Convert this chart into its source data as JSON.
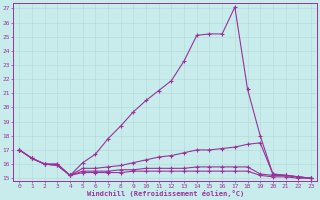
{
  "xlabel": "Windchill (Refroidissement éolien,°C)",
  "bg_color": "#c8ecec",
  "line_color": "#993399",
  "grid_color": "#b0d8d8",
  "xlim": [
    -0.5,
    23.5
  ],
  "ylim": [
    14.8,
    27.4
  ],
  "yticks": [
    15,
    16,
    17,
    18,
    19,
    20,
    21,
    22,
    23,
    24,
    25,
    26,
    27
  ],
  "xticks": [
    0,
    1,
    2,
    3,
    4,
    5,
    6,
    7,
    8,
    9,
    10,
    11,
    12,
    13,
    14,
    15,
    16,
    17,
    18,
    19,
    20,
    21,
    22,
    23
  ],
  "line1_x": [
    0,
    1,
    2,
    3,
    4,
    5,
    6,
    7,
    8,
    9,
    10,
    11,
    12,
    13,
    14,
    15,
    16,
    17,
    18,
    19,
    20,
    21,
    22,
    23
  ],
  "line1_y": [
    17.0,
    16.4,
    16.0,
    16.0,
    15.2,
    16.1,
    16.7,
    17.8,
    18.7,
    19.7,
    20.5,
    21.2,
    21.9,
    23.3,
    25.1,
    25.2,
    25.2,
    27.1,
    21.3,
    18.0,
    15.3,
    15.2,
    15.1,
    15.0
  ],
  "line2_x": [
    0,
    1,
    2,
    3,
    4,
    5,
    6,
    7,
    8,
    9,
    10,
    11,
    12,
    13,
    14,
    15,
    16,
    17,
    18,
    19,
    20,
    21,
    22,
    23
  ],
  "line2_y": [
    17.0,
    16.4,
    16.0,
    16.0,
    15.2,
    15.7,
    15.7,
    15.8,
    15.9,
    16.1,
    16.3,
    16.5,
    16.6,
    16.8,
    17.0,
    17.0,
    17.1,
    17.2,
    17.4,
    17.5,
    15.3,
    15.2,
    15.1,
    15.0
  ],
  "line3_x": [
    0,
    1,
    2,
    3,
    4,
    5,
    6,
    7,
    8,
    9,
    10,
    11,
    12,
    13,
    14,
    15,
    16,
    17,
    18,
    19,
    20,
    21,
    22,
    23
  ],
  "line3_y": [
    17.0,
    16.4,
    16.0,
    15.9,
    15.2,
    15.5,
    15.5,
    15.5,
    15.6,
    15.6,
    15.7,
    15.7,
    15.7,
    15.7,
    15.8,
    15.8,
    15.8,
    15.8,
    15.8,
    15.3,
    15.2,
    15.2,
    15.1,
    15.0
  ],
  "line4_x": [
    0,
    1,
    2,
    3,
    4,
    5,
    6,
    7,
    8,
    9,
    10,
    11,
    12,
    13,
    14,
    15,
    16,
    17,
    18,
    19,
    20,
    21,
    22,
    23
  ],
  "line4_y": [
    17.0,
    16.4,
    16.0,
    15.9,
    15.2,
    15.4,
    15.4,
    15.4,
    15.4,
    15.5,
    15.5,
    15.5,
    15.5,
    15.5,
    15.5,
    15.5,
    15.5,
    15.5,
    15.5,
    15.2,
    15.1,
    15.1,
    15.0,
    15.0
  ]
}
